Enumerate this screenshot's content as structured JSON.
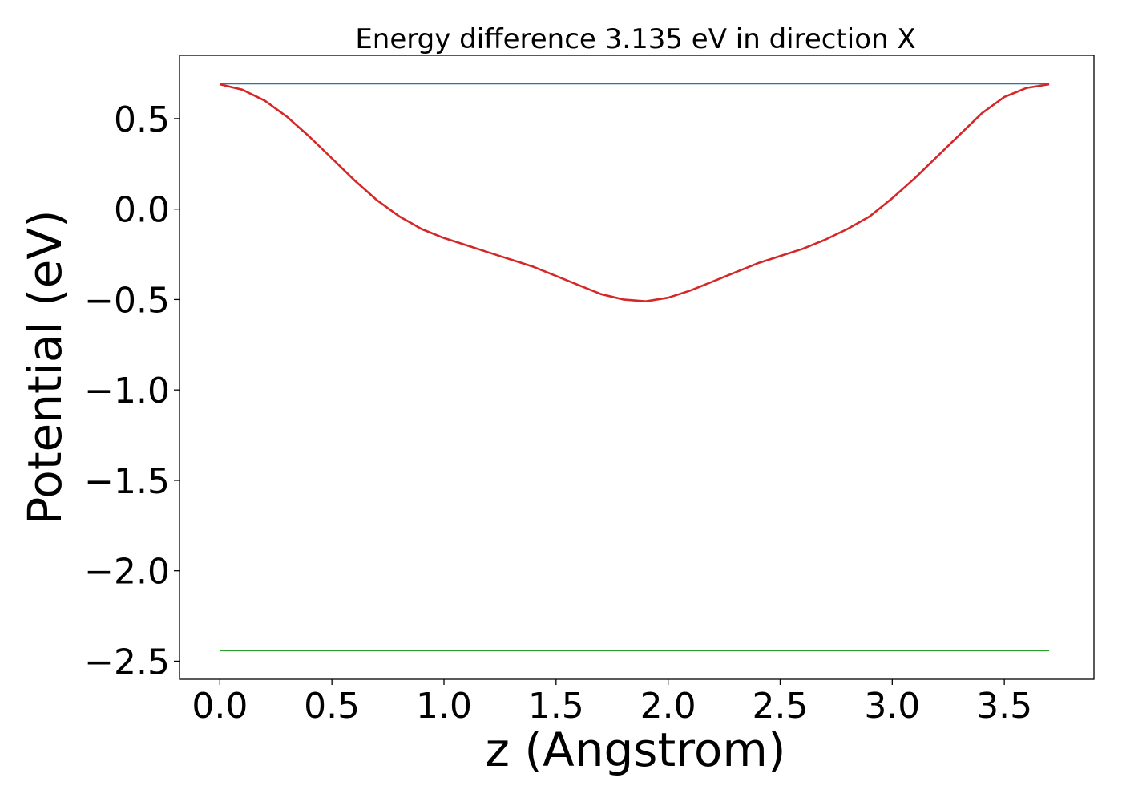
{
  "chart_data": {
    "type": "line",
    "title": "Energy difference 3.135 eV in direction X",
    "xlabel": "z (Angstrom)",
    "ylabel": "Potential (eV)",
    "xlim": [
      -0.18,
      3.9
    ],
    "ylim": [
      -2.6,
      0.85
    ],
    "xticks": [
      "0.0",
      "0.5",
      "1.0",
      "1.5",
      "2.0",
      "2.5",
      "3.0",
      "3.5"
    ],
    "xtick_values": [
      0.0,
      0.5,
      1.0,
      1.5,
      2.0,
      2.5,
      3.0,
      3.5
    ],
    "yticks": [
      "0.5",
      "0.0",
      "−0.5",
      "−1.0",
      "−1.5",
      "−2.0",
      "−2.5"
    ],
    "ytick_values": [
      0.5,
      0.0,
      -0.5,
      -1.0,
      -1.5,
      -2.0,
      -2.5
    ],
    "grid": false,
    "series": [
      {
        "color": "#d62728",
        "x": [
          0.0,
          0.1,
          0.2,
          0.3,
          0.4,
          0.5,
          0.6,
          0.7,
          0.8,
          0.9,
          1.0,
          1.1,
          1.2,
          1.3,
          1.4,
          1.5,
          1.6,
          1.7,
          1.8,
          1.9,
          2.0,
          2.1,
          2.2,
          2.3,
          2.4,
          2.5,
          2.6,
          2.7,
          2.8,
          2.9,
          3.0,
          3.1,
          3.2,
          3.3,
          3.4,
          3.5,
          3.6,
          3.7
        ],
        "values": [
          0.69,
          0.66,
          0.6,
          0.51,
          0.4,
          0.28,
          0.16,
          0.05,
          -0.04,
          -0.11,
          -0.16,
          -0.2,
          -0.24,
          -0.28,
          -0.32,
          -0.37,
          -0.42,
          -0.47,
          -0.5,
          -0.51,
          -0.49,
          -0.45,
          -0.4,
          -0.35,
          -0.3,
          -0.26,
          -0.22,
          -0.17,
          -0.11,
          -0.04,
          0.06,
          0.17,
          0.29,
          0.41,
          0.53,
          0.62,
          0.67,
          0.69
        ]
      },
      {
        "color": "#1f77b4",
        "x": [
          0.0,
          3.7
        ],
        "values": [
          0.694,
          0.694
        ]
      },
      {
        "color": "#2ca02c",
        "x": [
          0.0,
          3.7
        ],
        "values": [
          -2.441,
          -2.441
        ]
      }
    ]
  }
}
